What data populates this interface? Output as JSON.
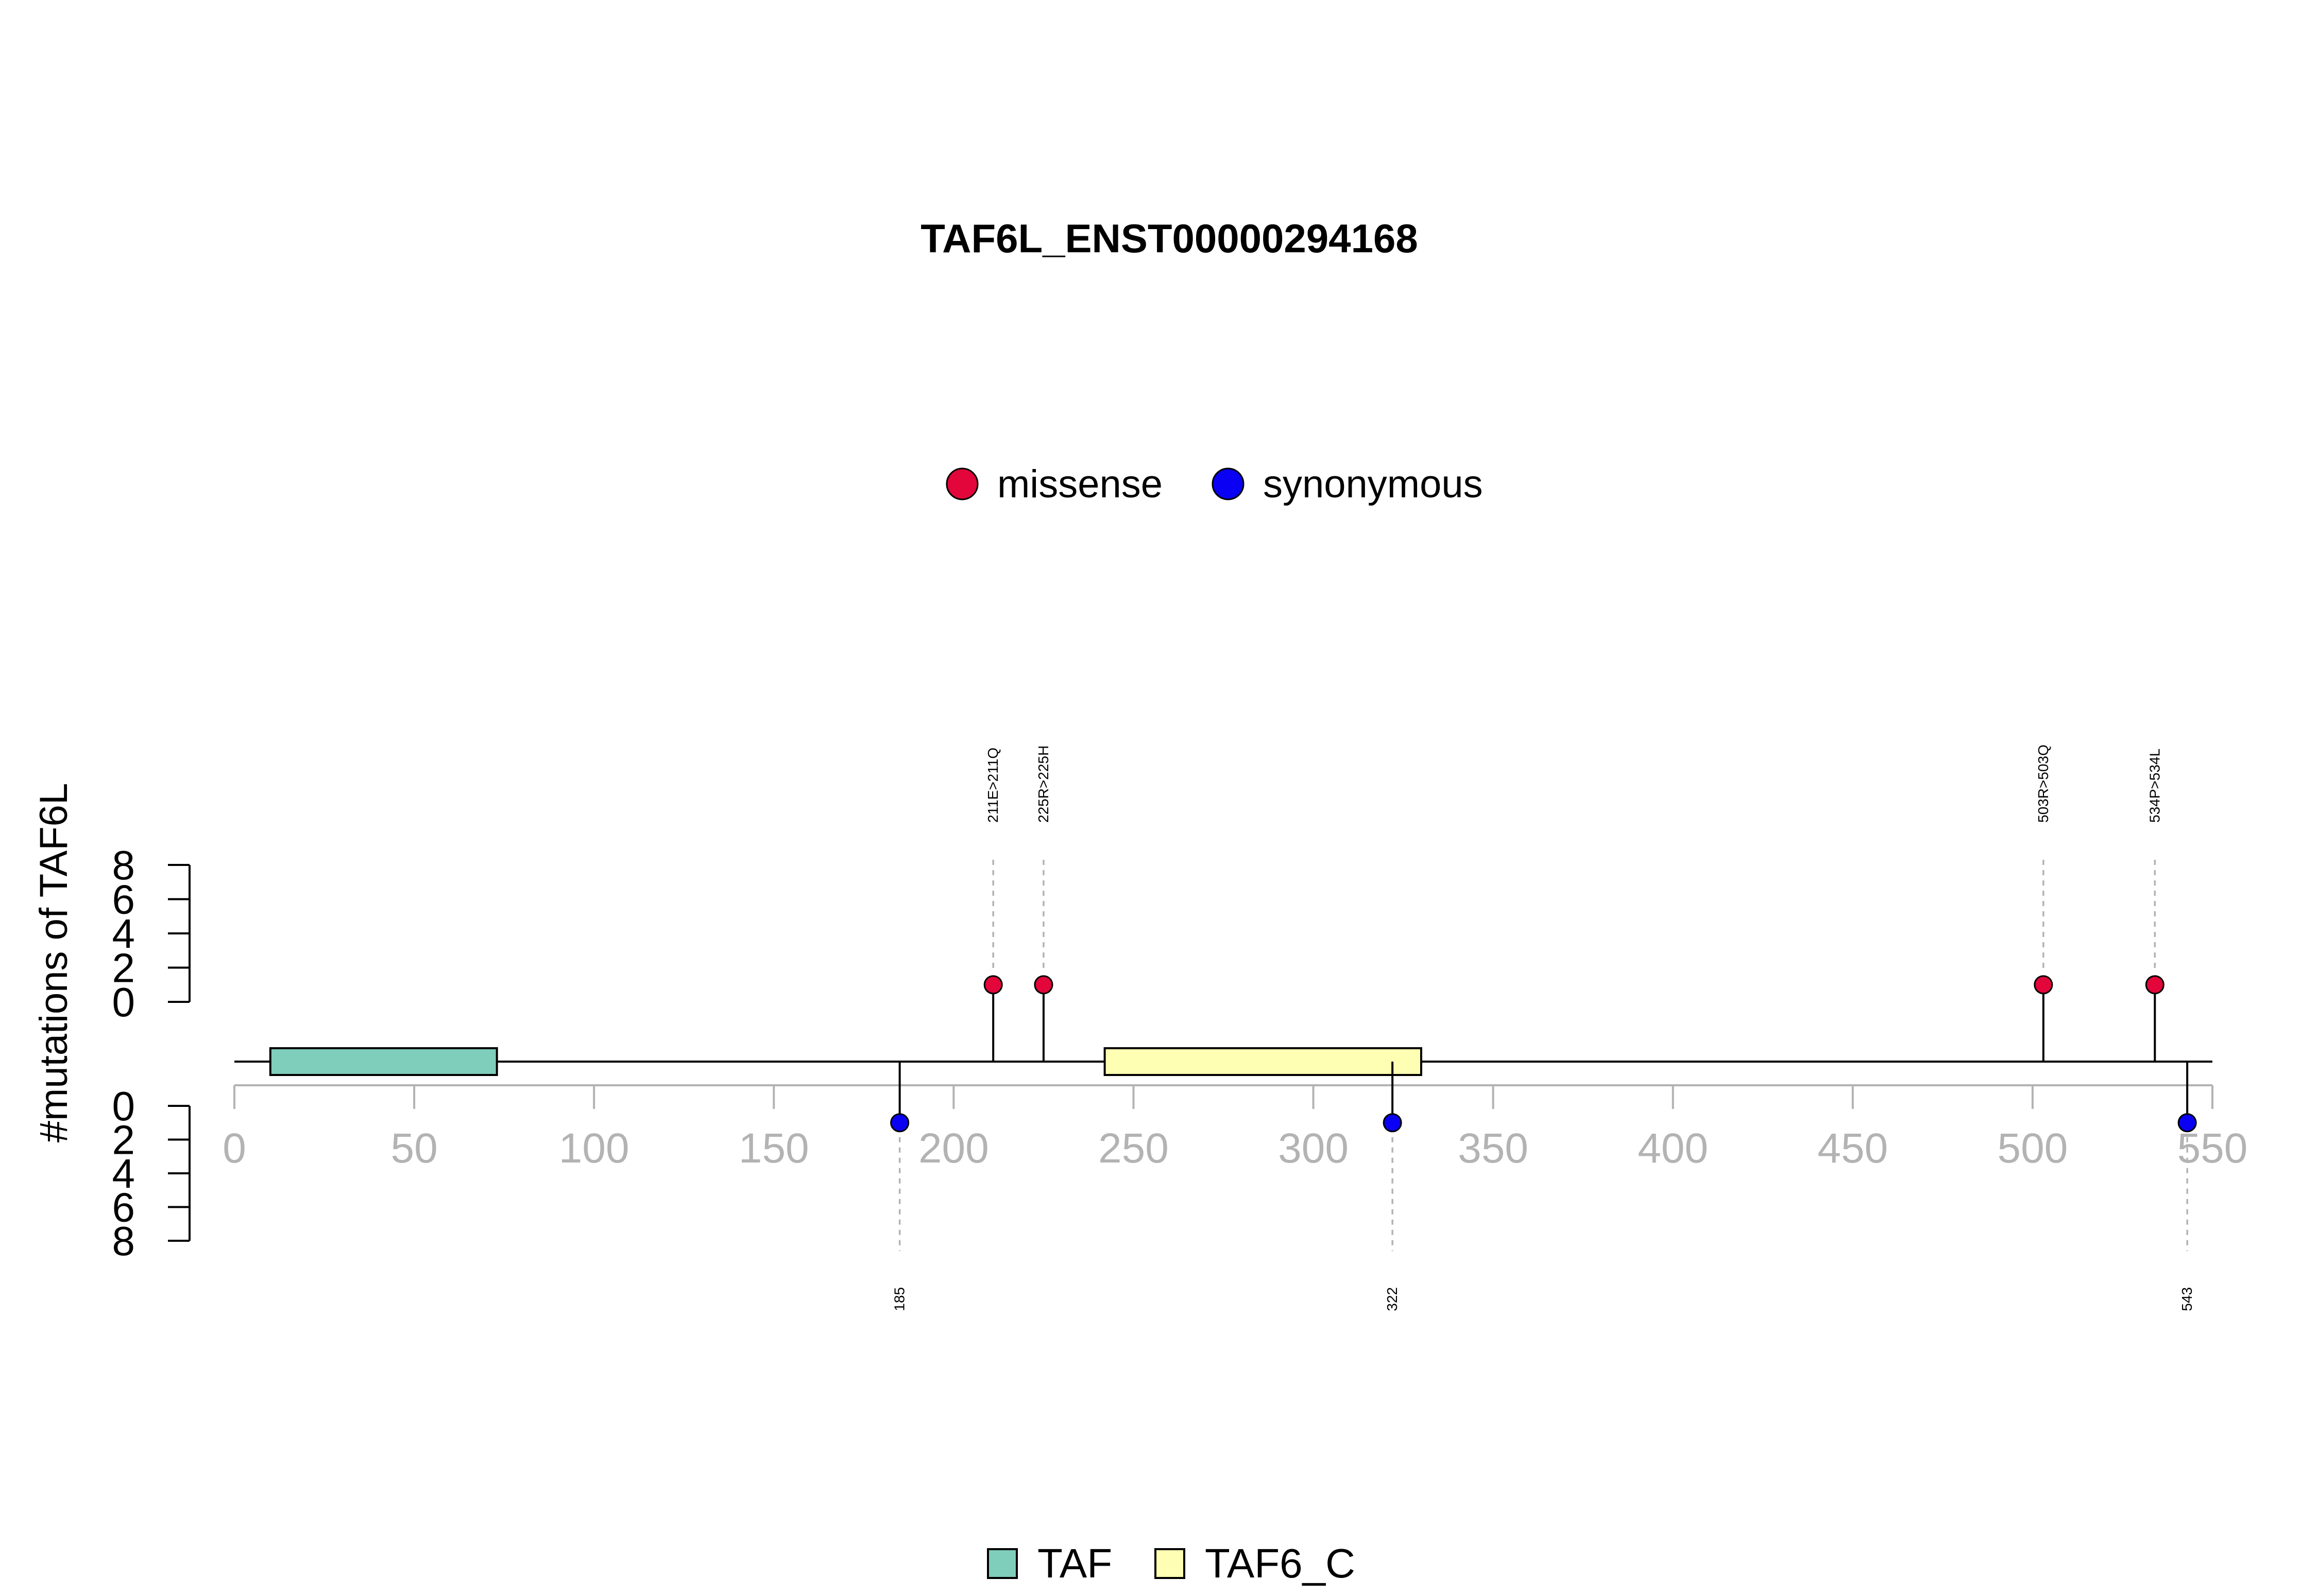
{
  "chart_data": {
    "type": "lollipop",
    "title": "TAF6L_ENST00000294168",
    "ylabel": "#mutations of TAF6L",
    "xlim": [
      0,
      550
    ],
    "x_ticks": [
      0,
      50,
      100,
      150,
      200,
      250,
      300,
      350,
      400,
      450,
      500,
      550
    ],
    "x_tick_labels": [
      "0",
      "50",
      "100",
      "150",
      "200",
      "250",
      "300",
      "350",
      "400",
      "450",
      "500",
      "550"
    ],
    "y_ticks": [
      0,
      2,
      4,
      6,
      8
    ],
    "y_tick_labels": [
      "0",
      "2",
      "4",
      "6",
      "8"
    ],
    "ylim": [
      0,
      8
    ],
    "mutation_legend": [
      {
        "label": "missense",
        "color": "#E2063B"
      },
      {
        "label": "synonymous",
        "color": "#0A00F4"
      }
    ],
    "domain_legend": [
      {
        "label": "TAF",
        "color": "#7FCDBB"
      },
      {
        "label": "TAF6_C",
        "color": "#FFFFB3"
      }
    ],
    "domains": [
      {
        "name": "TAF",
        "start": 10,
        "end": 73,
        "color": "#7FCDBB"
      },
      {
        "name": "TAF6_C",
        "start": 242,
        "end": 330,
        "color": "#FFFFB3"
      }
    ],
    "mutations_above": [
      {
        "position": 211,
        "count": 1,
        "type": "missense",
        "label": "211E>211Q"
      },
      {
        "position": 225,
        "count": 1,
        "type": "missense",
        "label": "225R>225H"
      },
      {
        "position": 503,
        "count": 1,
        "type": "missense",
        "label": "503R>503Q"
      },
      {
        "position": 534,
        "count": 1,
        "type": "missense",
        "label": "534P>534L"
      }
    ],
    "mutations_below": [
      {
        "position": 185,
        "count": 1,
        "type": "synonymous",
        "label": "185"
      },
      {
        "position": 322,
        "count": 1,
        "type": "synonymous",
        "label": "322"
      },
      {
        "position": 543,
        "count": 1,
        "type": "synonymous",
        "label": "543"
      }
    ],
    "grid": false
  }
}
